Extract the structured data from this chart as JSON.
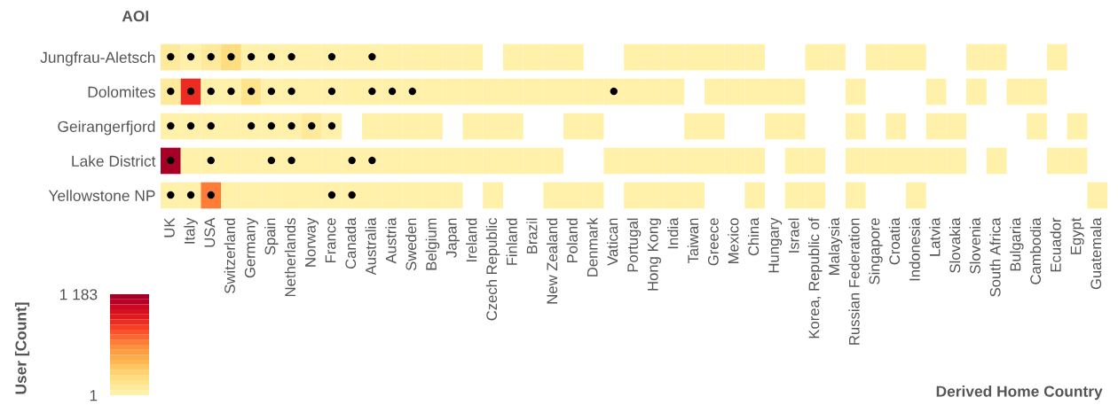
{
  "chart_data": {
    "type": "heatmap",
    "ylabel": "AOI",
    "xlabel": "Derived Home Country",
    "clabel": "User [Count]",
    "categories": [
      "UK",
      "Italy",
      "USA",
      "Switzerland",
      "Germany",
      "Spain",
      "Netherlands",
      "Norway",
      "France",
      "Canada",
      "Australia",
      "Austria",
      "Sweden",
      "Belgium",
      "Japan",
      "Ireland",
      "Czech Republic",
      "Finland",
      "Brazil",
      "New Zealand",
      "Poland",
      "Denmark",
      "Vatican",
      "Portugal",
      "Hong Kong",
      "India",
      "Taiwan",
      "Greece",
      "Mexico",
      "China",
      "Hungary",
      "Israel",
      "Korea, Republic of",
      "Malaysia",
      "Russian Federation",
      "Singapore",
      "Croatia",
      "Indonesia",
      "Latvia",
      "Slovakia",
      "Slovenia",
      "South Africa",
      "Bulgaria",
      "Cambodia",
      "Ecuador",
      "Egypt",
      "Guatemala"
    ],
    "y_categories": [
      "Jungfrau-Aletsch",
      "Dolomites",
      "Geirangerfjord",
      "Lake District",
      "Yellowstone NP"
    ],
    "cells": [
      [
        80,
        30,
        90,
        190,
        60,
        40,
        40,
        5,
        5,
        5,
        5,
        5,
        5,
        5,
        5,
        5,
        null,
        5,
        5,
        5,
        5,
        null,
        null,
        5,
        5,
        5,
        5,
        5,
        5,
        5,
        null,
        null,
        5,
        5,
        null,
        5,
        5,
        5,
        null,
        null,
        5,
        5,
        null,
        null,
        5,
        null,
        null
      ],
      [
        80,
        880,
        50,
        60,
        120,
        50,
        40,
        5,
        5,
        5,
        5,
        5,
        5,
        5,
        5,
        5,
        5,
        5,
        5,
        5,
        5,
        5,
        5,
        5,
        5,
        5,
        null,
        5,
        5,
        5,
        5,
        5,
        null,
        null,
        5,
        null,
        null,
        null,
        5,
        null,
        5,
        null,
        5,
        5,
        null,
        null,
        null
      ],
      [
        40,
        30,
        30,
        5,
        5,
        5,
        5,
        70,
        40,
        null,
        5,
        5,
        5,
        5,
        null,
        5,
        5,
        5,
        null,
        null,
        5,
        5,
        null,
        null,
        null,
        null,
        5,
        5,
        null,
        null,
        5,
        5,
        null,
        null,
        5,
        null,
        5,
        null,
        5,
        5,
        null,
        null,
        null,
        5,
        null,
        5,
        null
      ],
      [
        1183,
        5,
        60,
        5,
        5,
        5,
        5,
        5,
        5,
        5,
        5,
        5,
        5,
        5,
        5,
        5,
        5,
        5,
        5,
        5,
        null,
        null,
        5,
        5,
        5,
        5,
        5,
        5,
        5,
        5,
        null,
        5,
        5,
        null,
        5,
        5,
        5,
        5,
        5,
        5,
        null,
        5,
        null,
        null,
        5,
        5,
        null
      ],
      [
        40,
        40,
        650,
        5,
        5,
        5,
        5,
        5,
        5,
        5,
        5,
        5,
        5,
        5,
        5,
        null,
        5,
        null,
        null,
        5,
        5,
        5,
        null,
        5,
        5,
        5,
        5,
        null,
        null,
        5,
        null,
        5,
        5,
        null,
        5,
        null,
        null,
        5,
        null,
        null,
        null,
        null,
        null,
        null,
        null,
        null,
        5
      ]
    ],
    "cell_labels": [
      [
        "●",
        "●",
        "●",
        "●",
        "●",
        "●",
        "●",
        null,
        "●",
        null,
        "●",
        null,
        null,
        null,
        null,
        null,
        null,
        null,
        null,
        null,
        null,
        null,
        null,
        null,
        null,
        null,
        null,
        null,
        null,
        null,
        null,
        null,
        null,
        null,
        null,
        null,
        null,
        null,
        null,
        null,
        null,
        null,
        null,
        null,
        null,
        null,
        null
      ],
      [
        "●",
        "●",
        "●",
        "●",
        "●",
        "●",
        "●",
        null,
        "●",
        null,
        "●",
        "●",
        "●",
        null,
        null,
        null,
        null,
        null,
        null,
        null,
        null,
        null,
        "●",
        null,
        null,
        null,
        null,
        null,
        null,
        null,
        null,
        null,
        null,
        null,
        null,
        null,
        null,
        null,
        null,
        null,
        null,
        null,
        null,
        null,
        null,
        null,
        null
      ],
      [
        "●",
        "●",
        "●",
        null,
        "●",
        "●",
        "●",
        "●",
        "●",
        null,
        null,
        null,
        null,
        null,
        null,
        null,
        null,
        null,
        null,
        null,
        null,
        null,
        null,
        null,
        null,
        null,
        null,
        null,
        null,
        null,
        null,
        null,
        null,
        null,
        null,
        null,
        null,
        null,
        null,
        null,
        null,
        null,
        null,
        null,
        null,
        null,
        null
      ],
      [
        "●",
        null,
        "●",
        null,
        null,
        "●",
        "●",
        null,
        null,
        "●",
        "●",
        null,
        null,
        null,
        null,
        null,
        null,
        null,
        null,
        null,
        null,
        null,
        null,
        null,
        null,
        null,
        null,
        null,
        null,
        null,
        null,
        null,
        null,
        null,
        null,
        null,
        null,
        null,
        null,
        null,
        null,
        null,
        null,
        null,
        null,
        null,
        null
      ],
      [
        "●",
        "●",
        "●",
        null,
        null,
        null,
        null,
        null,
        "●",
        "●",
        null,
        null,
        null,
        null,
        null,
        null,
        null,
        null,
        null,
        null,
        null,
        null,
        null,
        null,
        null,
        null,
        null,
        null,
        null,
        null,
        null,
        null,
        null,
        null,
        null,
        null,
        null,
        null,
        null,
        null,
        null,
        null,
        null,
        null,
        null,
        null,
        null
      ]
    ],
    "clim": [
      1,
      1183
    ],
    "cticks": [
      1,
      {
        "value": 1183,
        "label": "1 183"
      }
    ],
    "grid": false,
    "legend": false
  }
}
